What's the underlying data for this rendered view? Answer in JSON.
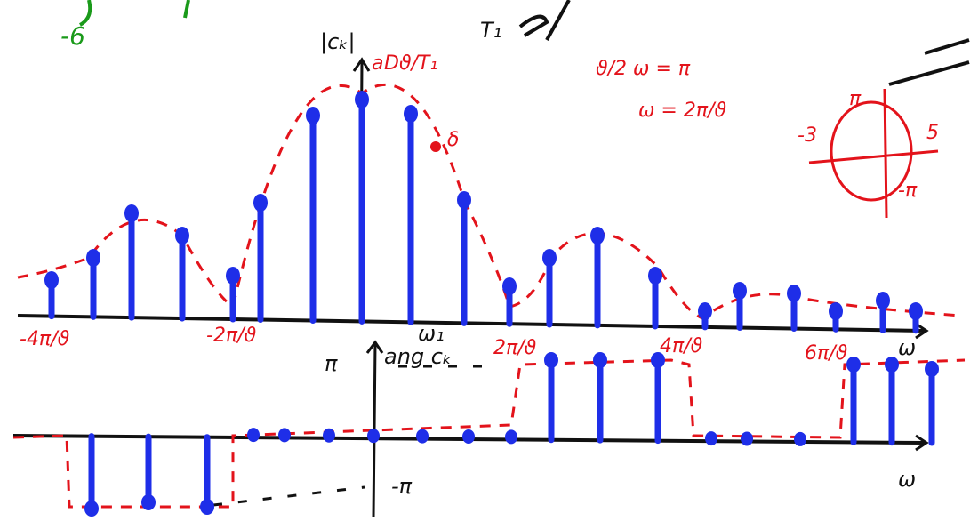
{
  "labels": {
    "top_left": "-6",
    "top_mid": "T₁",
    "magnitude_axis": "|cₖ|",
    "peak": "Dϑ/T₁",
    "peak_a": "a",
    "eq1": "ϑ/2 ω = π",
    "eq2": "ω = 2π/ϑ",
    "delta": "δ",
    "circle_left": "-3",
    "circle_right": "5",
    "circle_top": "π",
    "circle_bottom": "-π",
    "tick_m4": "-4π/ϑ",
    "tick_m2": "-2π/ϑ",
    "omega1": "ω₁",
    "phase_axis": "ang cₖ",
    "phase_pi": "π",
    "tick_2": "2π/ϑ",
    "tick_4": "4π/ϑ",
    "tick_6": "6π/ϑ",
    "omega_top": "ω",
    "omega_bottom": "ω",
    "phase_minus_pi": "-π"
  }
}
